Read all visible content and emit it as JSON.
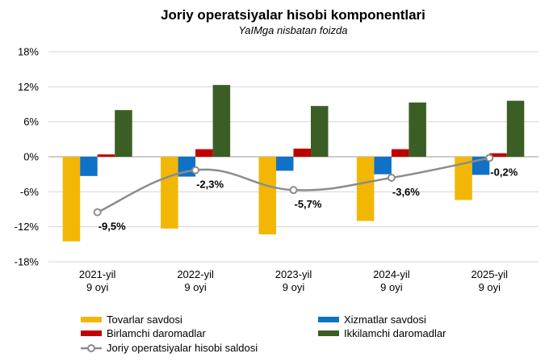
{
  "chart_data": {
    "type": "bar",
    "title": "Joriy operatsiyalar hisobi komponentlari",
    "subtitle": "YaIMga nisbatan foizda",
    "categories": [
      [
        "2021-yil",
        "9 oyi"
      ],
      [
        "2022-yil",
        "9 oyi"
      ],
      [
        "2023-yil",
        "9 oyi"
      ],
      [
        "2024-yil",
        "9 oyi"
      ],
      [
        "2025-yil",
        "9 oyi"
      ]
    ],
    "ylim": [
      -18,
      18
    ],
    "yticks": [
      -18,
      -12,
      -6,
      0,
      6,
      12,
      18
    ],
    "ytick_labels": [
      "-18%",
      "-12%",
      "-6%",
      "0%",
      "6%",
      "12%",
      "18%"
    ],
    "series": [
      {
        "name": "Tovarlar savdosi",
        "color": "#F2B705",
        "values": [
          -14.5,
          -12.3,
          -13.3,
          -11.0,
          -7.4
        ]
      },
      {
        "name": "Xizmatlar savdosi",
        "color": "#0F72C6",
        "values": [
          -3.3,
          -3.4,
          -2.4,
          -3.0,
          -3.1
        ]
      },
      {
        "name": "Birlamchi daromadlar",
        "color": "#C00000",
        "values": [
          0.4,
          1.3,
          1.4,
          1.3,
          0.6
        ]
      },
      {
        "name": "Ikkilamchi daromadlar",
        "color": "#3B5E24",
        "values": [
          8.0,
          12.3,
          8.7,
          9.3,
          9.6
        ]
      }
    ],
    "line_series": {
      "name": "Joriy operatsiyalar hisobi saldosi",
      "color": "#8C8C8C",
      "values": [
        -9.5,
        -2.3,
        -5.7,
        -3.6,
        -0.2
      ],
      "labels": [
        "-9,5%",
        "-2,3%",
        "-5,7%",
        "-3,6%",
        "-0,2%"
      ]
    },
    "grid": true,
    "legend": "bottom"
  }
}
